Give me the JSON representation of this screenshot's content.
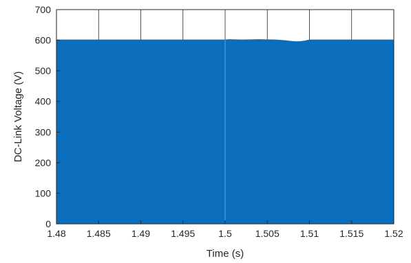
{
  "chart_data": {
    "type": "area",
    "title": "",
    "xlabel": "Time (s)",
    "ylabel": "DC-Link Voltage (V)",
    "xlim": [
      1.48,
      1.52
    ],
    "ylim": [
      0,
      700
    ],
    "xticks": [
      1.48,
      1.485,
      1.49,
      1.495,
      1.5,
      1.505,
      1.51,
      1.515,
      1.52
    ],
    "xtick_labels": [
      "1.48",
      "1.485",
      "1.49",
      "1.495",
      "1.5",
      "1.505",
      "1.51",
      "1.515",
      "1.52"
    ],
    "yticks": [
      0,
      100,
      200,
      300,
      400,
      500,
      600,
      700
    ],
    "ytick_labels": [
      "0",
      "100",
      "200",
      "300",
      "400",
      "500",
      "600",
      "700"
    ],
    "grid": true,
    "legend": "none",
    "colors": {
      "fill": "#0a6ebd",
      "grid": "#262626",
      "axis": "#262626"
    },
    "series": [
      {
        "x": [
          1.48,
          1.485,
          1.49,
          1.495,
          1.5,
          1.5005,
          1.502,
          1.504,
          1.506,
          1.507,
          1.508,
          1.5085,
          1.509,
          1.5095,
          1.51,
          1.512,
          1.515,
          1.52
        ],
        "values": [
          601,
          601,
          601,
          601,
          601,
          602,
          601,
          602,
          601,
          599,
          596,
          595,
          596,
          598,
          601,
          601,
          601,
          601
        ]
      }
    ]
  }
}
